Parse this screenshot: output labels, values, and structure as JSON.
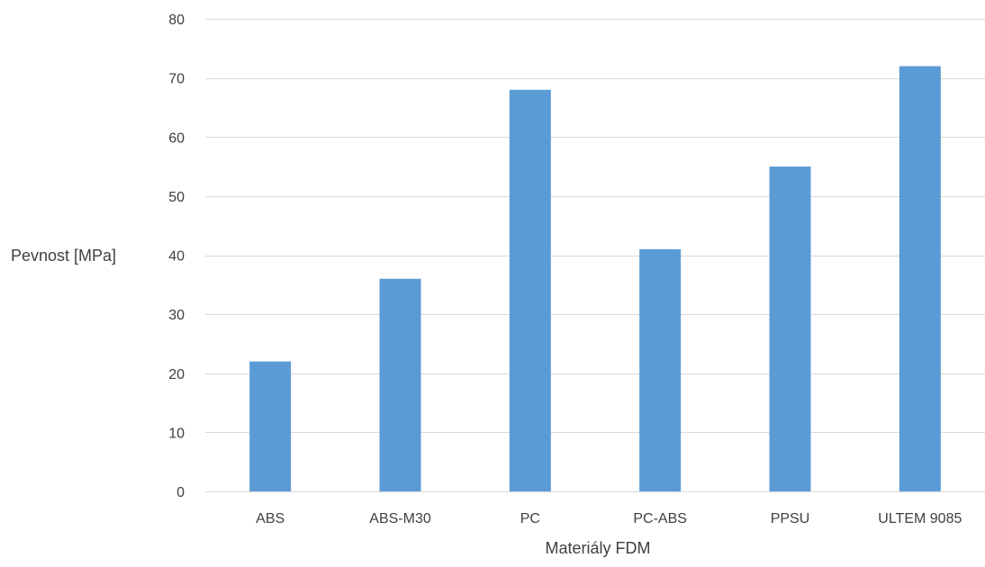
{
  "chart_data": {
    "type": "bar",
    "categories": [
      "ABS",
      "ABS-M30",
      "PC",
      "PC-ABS",
      "PPSU",
      "ULTEM 9085"
    ],
    "values": [
      22,
      36,
      68,
      41,
      55,
      72
    ],
    "xlabel": "Materiály FDM",
    "ylabel": "Pevnost [MPa]",
    "ylim": [
      0,
      80
    ],
    "yticks": [
      0,
      10,
      20,
      30,
      40,
      50,
      60,
      70,
      80
    ],
    "grid": true,
    "bar_color": "#5b9bd5",
    "grid_color": "#d9d9d9"
  }
}
